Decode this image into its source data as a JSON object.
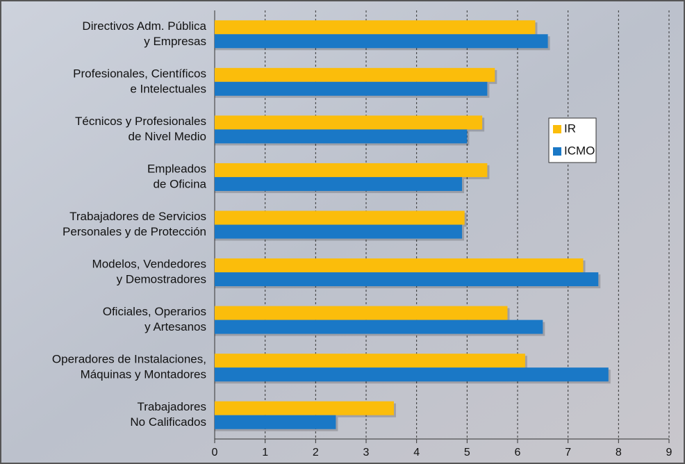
{
  "chart_data": {
    "type": "bar",
    "orientation": "horizontal",
    "categories": [
      [
        "Directivos Adm. Pública",
        "y Empresas"
      ],
      [
        "Profesionales, Científicos",
        "e Intelectuales"
      ],
      [
        "Técnicos y Profesionales",
        "de Nivel Medio"
      ],
      [
        "Empleados",
        "de Oficina"
      ],
      [
        "Trabajadores de Servicios",
        "Personales y de Protección"
      ],
      [
        "Modelos, Vendedores",
        "y Demostradores"
      ],
      [
        "Oficiales, Operarios",
        "y Artesanos"
      ],
      [
        "Operadores de Instalaciones,",
        "Máquinas y Montadores"
      ],
      [
        "Trabajadores",
        "No Calificados"
      ]
    ],
    "series": [
      {
        "name": "IR",
        "color": "#fbbd0b",
        "values": [
          6.35,
          5.55,
          5.3,
          5.4,
          4.95,
          7.3,
          5.8,
          6.15,
          3.55
        ]
      },
      {
        "name": "ICMO",
        "color": "#1a78c6",
        "values": [
          6.6,
          5.4,
          5.0,
          4.9,
          4.9,
          7.6,
          6.5,
          7.8,
          2.4
        ]
      }
    ],
    "xlim": [
      0,
      9
    ],
    "xticks": [
      0,
      1,
      2,
      3,
      4,
      5,
      6,
      7,
      8,
      9
    ],
    "grid": true,
    "legend": "right"
  }
}
